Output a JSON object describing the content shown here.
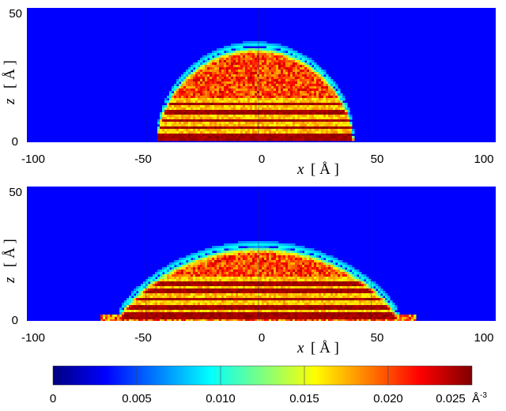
{
  "chart_data": [
    {
      "type": "heatmap",
      "panel": "upper",
      "xlabel": {
        "symbol": "x",
        "unit": "[ Å ]"
      },
      "ylabel": {
        "symbol": "z",
        "unit": "[ Å ]"
      },
      "xlim": [
        -100,
        100
      ],
      "ylim": [
        0,
        50
      ],
      "x_ticks": [
        "-100",
        "-50",
        "0",
        "50",
        "100"
      ],
      "y_ticks": [
        "50",
        "0"
      ],
      "dome": {
        "x_left": -45,
        "x_right": 42,
        "z_top": 36,
        "z_base": 1,
        "shape_exponent": 0.55
      },
      "layers": {
        "count": 5,
        "spacing": 3.0,
        "start_z": 1.2
      },
      "peak_density": 0.025,
      "background_density": 0.0
    },
    {
      "type": "heatmap",
      "panel": "lower",
      "xlabel": {
        "symbol": "x",
        "unit": "[ Å ]"
      },
      "ylabel": {
        "symbol": "z",
        "unit": "[ Å ]"
      },
      "xlim": [
        -100,
        100
      ],
      "ylim": [
        0,
        50
      ],
      "x_ticks": [
        "-100",
        "-50",
        "0",
        "50",
        "100"
      ],
      "y_ticks": [
        "50",
        "0"
      ],
      "dome": {
        "x_left": -62,
        "x_right": 62,
        "z_top": 28,
        "z_base": 1,
        "shape_exponent": 0.75
      },
      "layers": {
        "count": 5,
        "spacing": 3.0,
        "start_z": 1.0
      },
      "wetting_film": {
        "x_left": -70,
        "x_right": 70,
        "thickness": 2
      },
      "peak_density": 0.025,
      "background_density": 0.0
    }
  ],
  "colorbar": {
    "colormap": "jet",
    "range": [
      0,
      0.025
    ],
    "ticks": [
      "0",
      "0.005",
      "0.010",
      "0.015",
      "0.020",
      "0.025"
    ],
    "unit_base": "Å",
    "unit_exponent": "-3",
    "colors": [
      "#00007f",
      "#0000ff",
      "#007fff",
      "#00ffff",
      "#7fff7f",
      "#ffff00",
      "#ff7f00",
      "#ff0000",
      "#7f0000"
    ]
  }
}
